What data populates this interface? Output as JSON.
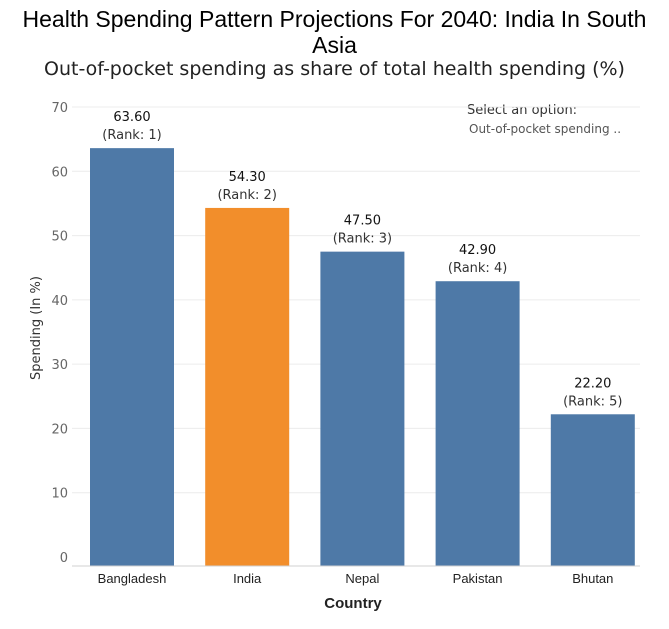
{
  "header": {
    "title_line1": "Health Spending Pattern Projections For 2040: India In South",
    "title_line2": "Asia",
    "subtitle": "Out-of-pocket spending as share of total health spending (%)"
  },
  "selector": {
    "label": "Select an option:",
    "value": "Out-of-pocket spending .."
  },
  "colors": {
    "default_bar": "#4e79a7",
    "highlight_bar": "#f28e2b"
  },
  "chart_data": {
    "type": "bar",
    "title": "Health Spending Pattern Projections For 2040: India In South Asia",
    "subtitle": "Out-of-pocket spending as share of total health spending (%)",
    "categories": [
      "Bangladesh",
      "India",
      "Nepal",
      "Pakistan",
      "Bhutan"
    ],
    "values": [
      63.6,
      54.3,
      47.5,
      42.9,
      22.2
    ],
    "value_labels": [
      "63.60",
      "54.30",
      "47.50",
      "42.90",
      "22.20"
    ],
    "rank_labels": [
      "(Rank: 1)",
      "(Rank: 2)",
      "(Rank: 3)",
      "(Rank: 4)",
      "(Rank: 5)"
    ],
    "highlight": "India",
    "xlabel": "Country",
    "ylabel": "Spending (In %)",
    "ylim": [
      0,
      70
    ],
    "yticks": [
      0,
      10,
      20,
      30,
      40,
      50,
      60,
      70
    ],
    "grid": true
  }
}
